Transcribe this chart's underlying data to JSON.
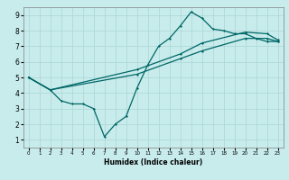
{
  "xlabel": "Humidex (Indice chaleur)",
  "ylabel": "",
  "xlim": [
    -0.5,
    23.5
  ],
  "ylim": [
    0.5,
    9.5
  ],
  "xticks": [
    0,
    1,
    2,
    3,
    4,
    5,
    6,
    7,
    8,
    9,
    10,
    11,
    12,
    13,
    14,
    15,
    16,
    17,
    18,
    19,
    20,
    21,
    22,
    23
  ],
  "yticks": [
    1,
    2,
    3,
    4,
    5,
    6,
    7,
    8,
    9
  ],
  "background_color": "#c8ecec",
  "grid_color": "#b0d8d8",
  "line_color": "#006666",
  "line1_x": [
    0,
    2,
    3,
    4,
    5,
    6,
    7,
    8,
    9,
    10,
    11,
    12,
    13,
    14,
    15,
    16,
    17,
    18,
    19,
    20,
    21,
    22,
    23
  ],
  "line1_y": [
    5,
    4.2,
    3.5,
    3.3,
    3.3,
    3.0,
    1.2,
    2.0,
    2.5,
    4.3,
    5.8,
    7.0,
    7.5,
    8.3,
    9.2,
    8.8,
    8.1,
    8.0,
    7.8,
    7.8,
    7.5,
    7.3,
    7.3
  ],
  "line2_x": [
    0,
    2,
    10,
    14,
    16,
    20,
    22,
    23
  ],
  "line2_y": [
    5,
    4.2,
    5.2,
    6.2,
    6.7,
    7.5,
    7.5,
    7.3
  ],
  "line3_x": [
    0,
    2,
    10,
    14,
    16,
    20,
    22,
    23
  ],
  "line3_y": [
    5,
    4.2,
    5.5,
    6.5,
    7.2,
    7.9,
    7.8,
    7.4
  ]
}
